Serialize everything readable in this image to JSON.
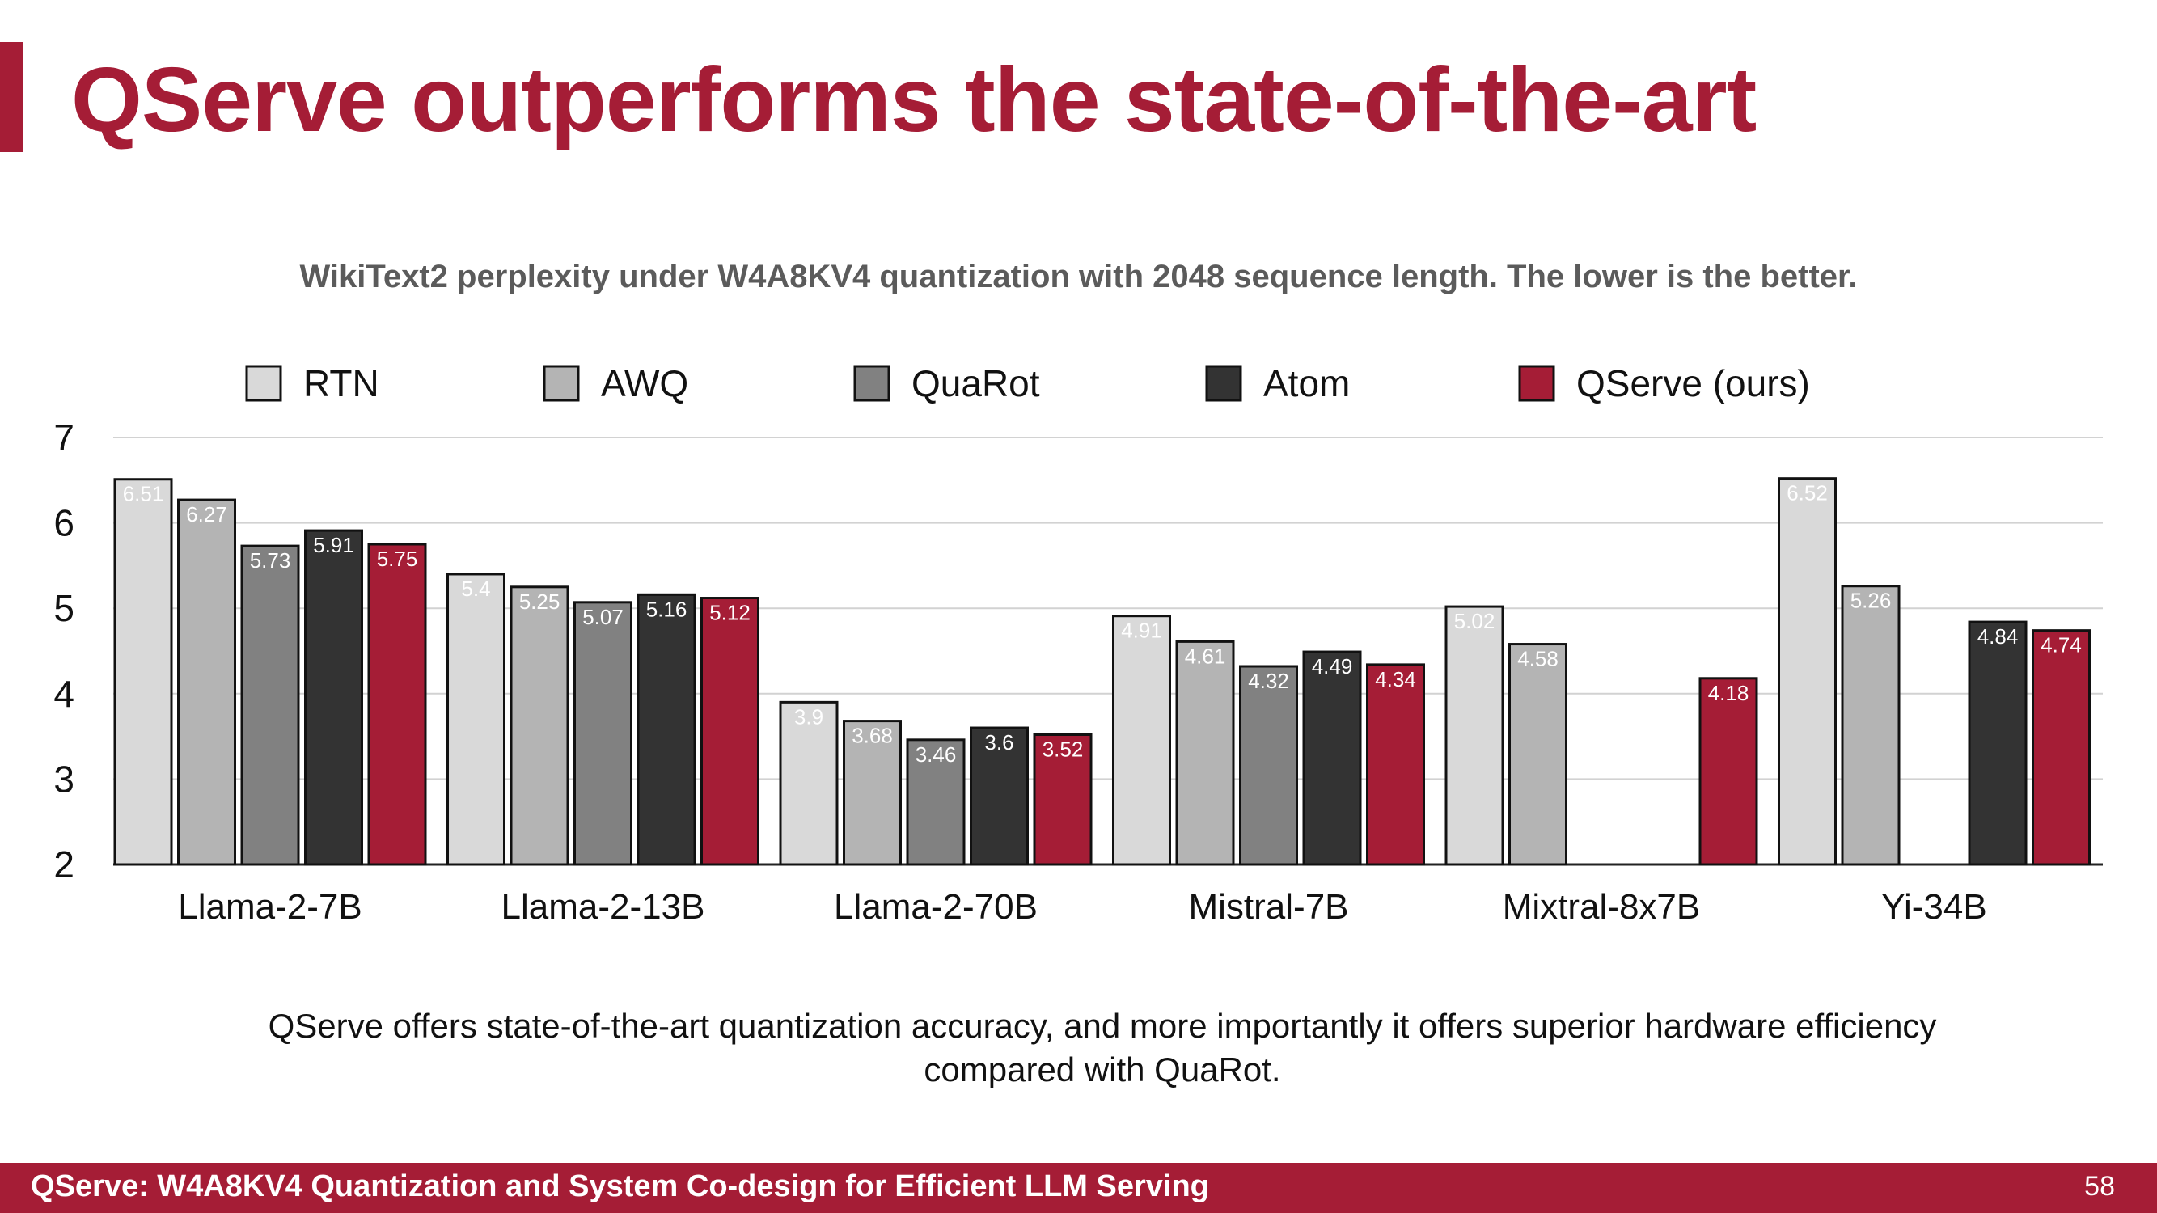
{
  "slide": {
    "title": "QServe outperforms the state-of-the-art",
    "caption": "QServe offers state-of-the-art quantization accuracy, and more importantly it offers superior hardware efficiency compared with QuaRot.",
    "footer": "QServe: W4A8KV4 Quantization and System Co-design for Efficient LLM Serving",
    "page_number": "58"
  },
  "chart_data": {
    "type": "bar",
    "title": "WikiText2 perplexity under W4A8KV4 quantization with 2048 sequence length. The lower is the better.",
    "xlabel": "",
    "ylabel": "",
    "ylim": [
      2,
      7
    ],
    "yticks": [
      2,
      3,
      4,
      5,
      6,
      7
    ],
    "grid": true,
    "legend_position": "top",
    "categories": [
      "Llama-2-7B",
      "Llama-2-13B",
      "Llama-2-70B",
      "Mistral-7B",
      "Mixtral-8x7B",
      "Yi-34B"
    ],
    "series": [
      {
        "name": "RTN",
        "color": "#d9d9d9",
        "label_color": "#ffffff",
        "values": [
          6.51,
          5.4,
          3.9,
          4.91,
          5.02,
          6.52
        ]
      },
      {
        "name": "AWQ",
        "color": "#b4b4b4",
        "label_color": "#ffffff",
        "values": [
          6.27,
          5.25,
          3.68,
          4.61,
          4.58,
          5.26
        ]
      },
      {
        "name": "QuaRot",
        "color": "#818181",
        "label_color": "#ffffff",
        "values": [
          5.73,
          5.07,
          3.46,
          4.32,
          null,
          null
        ]
      },
      {
        "name": "Atom",
        "color": "#333333",
        "label_color": "#ffffff",
        "values": [
          5.91,
          5.16,
          3.6,
          4.49,
          null,
          4.84
        ]
      },
      {
        "name": "QServe (ours)",
        "color": "#a51d36",
        "label_color": "#ffffff",
        "values": [
          5.75,
          5.12,
          3.52,
          4.34,
          4.18,
          4.74
        ]
      }
    ]
  }
}
